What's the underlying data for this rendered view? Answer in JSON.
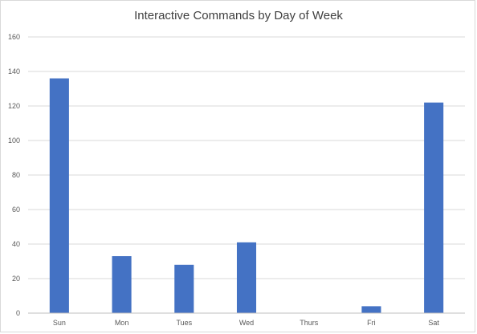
{
  "chart_data": {
    "type": "bar",
    "title": "Interactive Commands by Day of Week",
    "xlabel": "",
    "ylabel": "",
    "categories": [
      "Sun",
      "Mon",
      "Tues",
      "Wed",
      "Thurs",
      "Fri",
      "Sat"
    ],
    "values": [
      136,
      33,
      28,
      41,
      0,
      4,
      122
    ],
    "ylim": [
      0,
      160
    ],
    "yticks": [
      "0",
      "20",
      "40",
      "60",
      "80",
      "100",
      "120",
      "140",
      "160"
    ],
    "grid": true,
    "legend": "none",
    "colors": {
      "bar": "#4472c4",
      "grid": "#d9d9d9",
      "axis": "#bfbfbf"
    }
  }
}
